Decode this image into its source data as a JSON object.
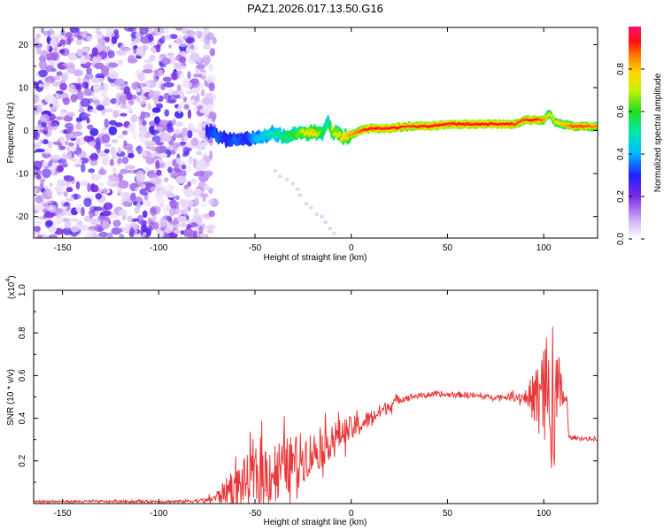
{
  "title": "PAZ1.2026.017.13.50.G16",
  "chart_data": [
    {
      "type": "heatmap",
      "name": "spectrogram",
      "xlabel": "Height of straight line (km)",
      "ylabel": "Frequency (Hz)",
      "xlim": [
        -165,
        128
      ],
      "ylim": [
        -25,
        24
      ],
      "xticks": [
        -150,
        -100,
        -50,
        0,
        50,
        100
      ],
      "yticks": [
        -20,
        -10,
        0,
        10,
        20
      ],
      "noise_region_x": [
        -165,
        -75
      ],
      "ridge": {
        "x": [
          -75,
          -70,
          -65,
          -60,
          -55,
          -50,
          -45,
          -40,
          -35,
          -30,
          -25,
          -20,
          -15,
          -12,
          -10,
          -5,
          0,
          5,
          10,
          20,
          30,
          40,
          50,
          60,
          70,
          80,
          85,
          90,
          95,
          100,
          103,
          106,
          110,
          115,
          120,
          128
        ],
        "freq": [
          0,
          -1,
          -2,
          -2.5,
          -1.5,
          -2,
          -1,
          -0.5,
          -1.5,
          -1,
          -0.5,
          -0.5,
          -0.5,
          2,
          0,
          -1.5,
          -1,
          0,
          0.5,
          0.5,
          1,
          1,
          1.5,
          1.5,
          1.5,
          1.5,
          1.5,
          2.5,
          2.5,
          2.5,
          4,
          2,
          1.5,
          1,
          1,
          1
        ],
        "amplitude": [
          0.3,
          0.35,
          0.3,
          0.35,
          0.3,
          0.4,
          0.45,
          0.5,
          0.55,
          0.6,
          0.7,
          0.8,
          0.6,
          0.5,
          0.7,
          0.75,
          0.85,
          0.9,
          0.95,
          0.95,
          0.9,
          0.95,
          0.95,
          0.95,
          0.95,
          0.95,
          0.9,
          0.9,
          0.95,
          0.85,
          0.7,
          0.75,
          0.8,
          0.9,
          0.9,
          0.85
        ]
      }
    },
    {
      "type": "colorbar",
      "name": "colorbar",
      "label": "Normalized spectral amplitude",
      "range": [
        0.0,
        1.0
      ],
      "ticks": [
        "0.0",
        "0.2",
        "0.4",
        "0.6",
        "0.8"
      ],
      "tick_values": [
        0.0,
        0.2,
        0.4,
        0.6,
        0.8
      ]
    },
    {
      "type": "line",
      "name": "snr",
      "xlabel": "Height of straight line (km)",
      "ylabel": "SNR (10 * v/v)",
      "scale_label": "(x10",
      "scale_exponent": "4",
      "xlim": [
        -165,
        128
      ],
      "ylim": [
        0,
        1.0
      ],
      "xticks": [
        -150,
        -100,
        -50,
        0,
        50,
        100
      ],
      "yticks": [
        0.2,
        0.4,
        0.6,
        0.8,
        1.0
      ],
      "color": "#e8383a",
      "envelope": {
        "x": [
          -165,
          -90,
          -75,
          -70,
          -65,
          -60,
          -55,
          -50,
          -45,
          -40,
          -35,
          -30,
          -25,
          -20,
          -15,
          -10,
          -5,
          0,
          5,
          10,
          15,
          20,
          25,
          30,
          40,
          50,
          60,
          70,
          80,
          90,
          95,
          98,
          100,
          102,
          104,
          106,
          108,
          110,
          112,
          113,
          128
        ],
        "base": [
          0.01,
          0.01,
          0.015,
          0.03,
          0.06,
          0.08,
          0.1,
          0.12,
          0.14,
          0.15,
          0.17,
          0.19,
          0.22,
          0.24,
          0.26,
          0.3,
          0.33,
          0.35,
          0.37,
          0.4,
          0.43,
          0.46,
          0.49,
          0.5,
          0.51,
          0.51,
          0.51,
          0.5,
          0.5,
          0.5,
          0.5,
          0.5,
          0.5,
          0.5,
          0.5,
          0.5,
          0.5,
          0.5,
          0.49,
          0.31,
          0.3
        ],
        "amplitude": [
          0.005,
          0.006,
          0.01,
          0.03,
          0.06,
          0.09,
          0.12,
          0.14,
          0.15,
          0.15,
          0.14,
          0.13,
          0.12,
          0.1,
          0.09,
          0.08,
          0.07,
          0.06,
          0.05,
          0.04,
          0.035,
          0.03,
          0.02,
          0.015,
          0.012,
          0.012,
          0.015,
          0.012,
          0.012,
          0.03,
          0.12,
          0.22,
          0.3,
          0.35,
          0.45,
          0.3,
          0.2,
          0.05,
          0.02,
          0.008,
          0.008
        ]
      }
    }
  ]
}
